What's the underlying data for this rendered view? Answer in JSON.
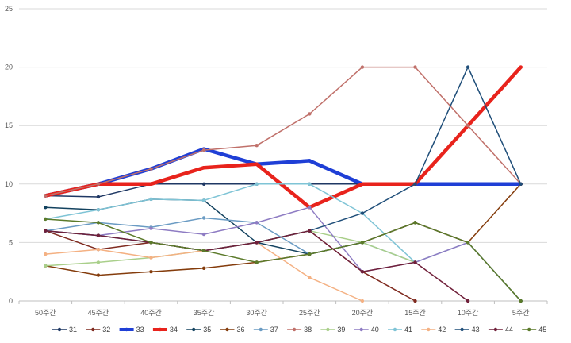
{
  "chart_data": {
    "type": "line",
    "title": "",
    "xlabel": "",
    "ylabel": "",
    "categories": [
      "50주간",
      "45주간",
      "40주간",
      "35주간",
      "30주간",
      "25주간",
      "20주간",
      "15주간",
      "10주간",
      "5주간"
    ],
    "ylim": [
      0,
      25
    ],
    "yticks": [
      0,
      5,
      10,
      15,
      20,
      25
    ],
    "grid": true,
    "legend_position": "bottom",
    "series": [
      {
        "name": "31",
        "color": "#1f3864",
        "values": [
          9,
          8.9,
          10,
          10,
          10,
          10,
          10,
          10,
          10,
          10
        ]
      },
      {
        "name": "32",
        "color": "#7f2a1f",
        "values": [
          6,
          4.4,
          5,
          4.3,
          5,
          6,
          2.5,
          0,
          null,
          null
        ]
      },
      {
        "name": "33",
        "color": "#1f3fd6",
        "values": [
          9,
          10,
          11.3,
          13,
          11.7,
          12,
          10,
          10,
          10,
          10
        ]
      },
      {
        "name": "34",
        "color": "#e8231c",
        "values": [
          9,
          10,
          10,
          11.4,
          11.7,
          8,
          10,
          10,
          15,
          20
        ]
      },
      {
        "name": "35",
        "color": "#13425f",
        "values": [
          8,
          7.8,
          8.7,
          8.6,
          5,
          4,
          5,
          6.7,
          5,
          0
        ]
      },
      {
        "name": "36",
        "color": "#843c0c",
        "values": [
          3,
          2.2,
          2.5,
          2.8,
          3.3,
          4,
          5,
          6.7,
          5,
          10
        ]
      },
      {
        "name": "37",
        "color": "#6a9bc3",
        "values": [
          6,
          6.7,
          6.3,
          7.1,
          6.7,
          4,
          5,
          3.3,
          5,
          null
        ]
      },
      {
        "name": "38",
        "color": "#c0706a",
        "values": [
          9,
          10,
          11.3,
          12.9,
          13.3,
          16,
          20,
          20,
          15,
          10
        ]
      },
      {
        "name": "39",
        "color": "#a9cf8a",
        "values": [
          3,
          3.3,
          3.7,
          4.3,
          5,
          6,
          5,
          3.3,
          null,
          null
        ]
      },
      {
        "name": "40",
        "color": "#8e7cc3",
        "values": [
          6,
          5.6,
          6.2,
          5.7,
          6.7,
          8,
          2.5,
          3.3,
          5,
          null
        ]
      },
      {
        "name": "41",
        "color": "#7fc4d6",
        "values": [
          7,
          7.8,
          8.7,
          8.6,
          10,
          10,
          7.5,
          3.3,
          null,
          null
        ]
      },
      {
        "name": "42",
        "color": "#f4b183",
        "values": [
          4,
          4.4,
          3.7,
          4.3,
          5,
          2,
          0,
          null,
          null,
          null
        ]
      },
      {
        "name": "43",
        "color": "#1f4e79",
        "values": [
          6,
          5.6,
          5,
          4.3,
          5,
          6,
          7.5,
          10,
          20,
          10
        ]
      },
      {
        "name": "44",
        "color": "#70203a",
        "values": [
          6,
          5.6,
          5,
          4.3,
          5,
          6,
          2.5,
          3.3,
          0,
          null
        ]
      },
      {
        "name": "45",
        "color": "#5b7a2a",
        "values": [
          7,
          6.7,
          5,
          4.3,
          3.3,
          4,
          5,
          6.7,
          5,
          0
        ]
      }
    ]
  }
}
